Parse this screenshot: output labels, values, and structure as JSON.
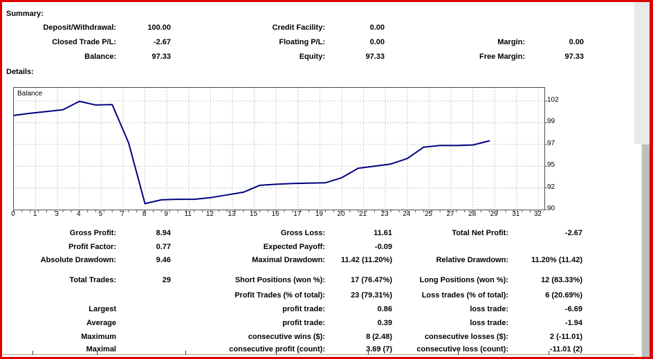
{
  "colors": {
    "accent_border": "#e00000",
    "chart_line": "#000080",
    "grid_line": "#c8c8c8",
    "text": "#000000",
    "scrollbar_thumb": "#bdbdbd"
  },
  "summary": {
    "title": "Summary:",
    "rows": [
      [
        {
          "label": "Deposit/Withdrawal:",
          "value": "100.00"
        },
        {
          "label": "Credit Facility:",
          "value": "0.00"
        },
        {
          "label": "",
          "value": ""
        }
      ],
      [
        {
          "label": "Closed Trade P/L:",
          "value": "-2.67"
        },
        {
          "label": "Floating P/L:",
          "value": "0.00"
        },
        {
          "label": "Margin:",
          "value": "0.00"
        }
      ],
      [
        {
          "label": "Balance:",
          "value": "97.33"
        },
        {
          "label": "Equity:",
          "value": "97.33"
        },
        {
          "label": "Free Margin:",
          "value": "97.33"
        }
      ]
    ]
  },
  "details": {
    "title": "Details:",
    "rows": [
      [
        {
          "label": "Gross Profit:",
          "value": "8.94"
        },
        {
          "label": "Gross Loss:",
          "value": "11.61"
        },
        {
          "label": "Total Net Profit:",
          "value": "-2.67"
        }
      ],
      [
        {
          "label": "Profit Factor:",
          "value": "0.77"
        },
        {
          "label": "Expected Payoff:",
          "value": "-0.09"
        },
        {
          "label": "",
          "value": ""
        }
      ],
      [
        {
          "label": "Absolute Drawdown:",
          "value": "9.46"
        },
        {
          "label": "Maximal Drawdown:",
          "value": "11.42 (11.20%)"
        },
        {
          "label": "Relative Drawdown:",
          "value": "11.20% (11.42)"
        }
      ],
      [
        {
          "label": "Total Trades:",
          "value": "29"
        },
        {
          "label": "Short Positions (won %):",
          "value": "17 (76.47%)"
        },
        {
          "label": "Long Positions (won %):",
          "value": "12 (83.33%)"
        }
      ],
      [
        {
          "label": "",
          "value": ""
        },
        {
          "label": "Profit Trades (% of total):",
          "value": "23 (79.31%)"
        },
        {
          "label": "Loss trades (% of total):",
          "value": "6 (20.69%)"
        }
      ],
      [
        {
          "label": "Largest",
          "value": ""
        },
        {
          "label": "profit trade:",
          "value": "0.86"
        },
        {
          "label": "loss trade:",
          "value": "-6.69"
        }
      ],
      [
        {
          "label": "Average",
          "value": ""
        },
        {
          "label": "profit trade:",
          "value": "0.39"
        },
        {
          "label": "loss trade:",
          "value": "-1.94"
        }
      ],
      [
        {
          "label": "Maximum",
          "value": ""
        },
        {
          "label": "consecutive wins ($):",
          "value": "8 (2.48)"
        },
        {
          "label": "consecutive losses ($):",
          "value": "2 (-11.01)"
        }
      ],
      [
        {
          "label": "Maximal",
          "value": ""
        },
        {
          "label": "consecutive profit (count):",
          "value": "3.69 (7)"
        },
        {
          "label": "consecutive loss (count):",
          "value": "-11.01 (2)"
        }
      ]
    ]
  },
  "chart_data": {
    "type": "line",
    "title": "Balance",
    "x": [
      0,
      1,
      2,
      3,
      4,
      5,
      6,
      7,
      8,
      9,
      10,
      11,
      12,
      13,
      14,
      15,
      16,
      17,
      18,
      19,
      20,
      21,
      22,
      23,
      24,
      25,
      26,
      27,
      28,
      29
    ],
    "series": [
      {
        "name": "Balance",
        "values": [
          100.0,
          100.3,
          100.55,
          100.8,
          101.95,
          101.45,
          101.5,
          97.15,
          90.55,
          90.9,
          90.95,
          90.95,
          91.1,
          91.35,
          91.6,
          92.35,
          92.5,
          92.6,
          92.65,
          92.7,
          93.4,
          94.7,
          95.0,
          95.2,
          95.7,
          96.75,
          96.9,
          96.9,
          96.95,
          97.33
        ]
      }
    ],
    "x_tick_labels": [
      "0",
      "1",
      "3",
      "4",
      "5",
      "7",
      "8",
      "9",
      "11",
      "12",
      "13",
      "15",
      "16",
      "17",
      "19",
      "20",
      "21",
      "23",
      "24",
      "25",
      "27",
      "28",
      "29",
      "31",
      "32"
    ],
    "y_tick_labels": [
      "102",
      "99",
      "97",
      "95",
      "92",
      "90"
    ],
    "xlim": [
      0,
      32
    ],
    "ylim": [
      90,
      102.6
    ],
    "grid": true,
    "legend_position": "top-left-inside"
  }
}
